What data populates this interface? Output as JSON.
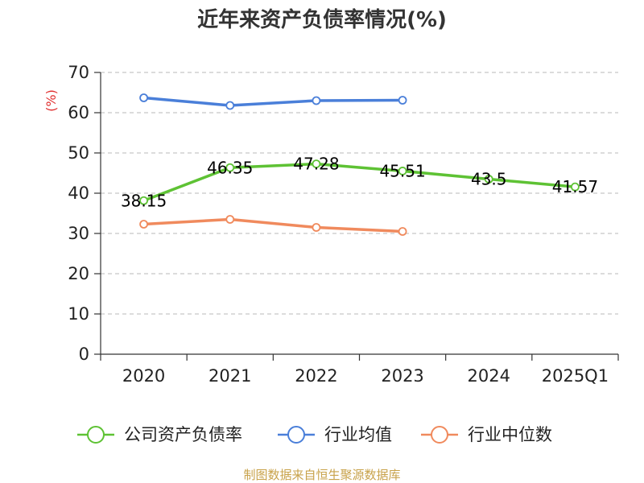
{
  "chart_data": {
    "type": "line",
    "title": "近年来资产负债率情况(%)",
    "ylabel": "(%)",
    "categories": [
      "2020",
      "2021",
      "2022",
      "2023",
      "2024",
      "2025Q1"
    ],
    "ylim": [
      0,
      70
    ],
    "yticks": [
      0,
      10,
      20,
      30,
      40,
      50,
      60,
      70
    ],
    "grid": "horizontal dashed",
    "legend_position": "bottom",
    "series": [
      {
        "name": "公司资产负债率",
        "color": "#5ec234",
        "values": [
          38.15,
          46.35,
          47.28,
          45.51,
          43.5,
          41.57
        ],
        "labels": [
          "38.15",
          "46.35",
          "47.28",
          "45.51",
          "43.5",
          "41.57"
        ]
      },
      {
        "name": "行业均值",
        "color": "#4a7fd9",
        "values": [
          63.7,
          61.8,
          63.0,
          63.1,
          null,
          null
        ]
      },
      {
        "name": "行业中位数",
        "color": "#f08a5d",
        "values": [
          32.3,
          33.5,
          31.5,
          30.5,
          null,
          null
        ]
      }
    ],
    "source": "制图数据来自恒生聚源数据库"
  }
}
